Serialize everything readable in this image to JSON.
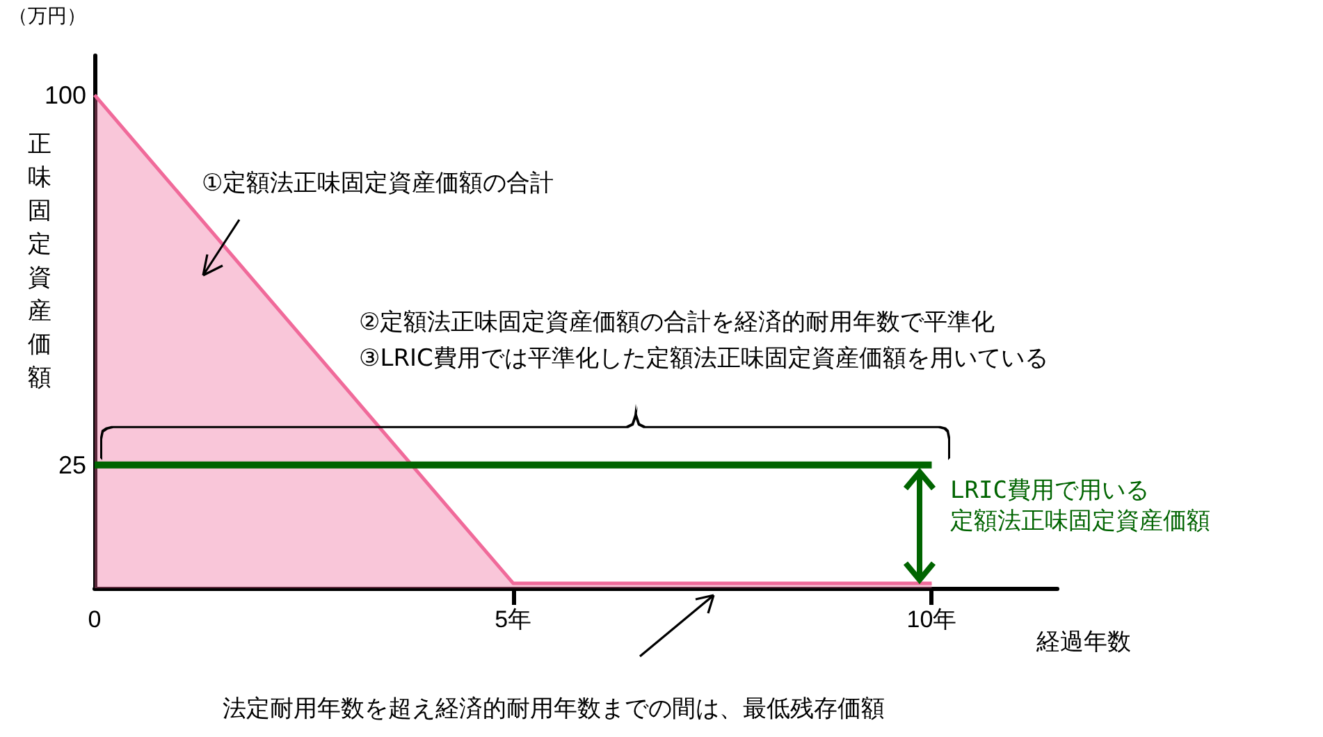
{
  "chart_data": {
    "type": "area",
    "ylabel": "正味固定資産価額",
    "xlabel": "経過年数",
    "xlim": [
      0,
      11.5
    ],
    "xticks": [
      0,
      {
        "value": 5,
        "label": "5年"
      },
      {
        "value": 10,
        "label": "10年"
      }
    ],
    "ylim": [
      0,
      108
    ],
    "yticks": [
      25,
      100
    ],
    "series": [
      {
        "color": "#f06a9a",
        "x": [
          0,
          5,
          10
        ],
        "values": [
          100,
          1,
          1
        ]
      },
      {
        "type": "line",
        "color": "#006400",
        "x": [
          0,
          10
        ],
        "values": [
          25,
          25
        ]
      }
    ],
    "annotations": [
      "（万円）",
      "①定額法正味固定資産価額の合計",
      "②定額法正味固定資産価額の合計を経済的耐用年数で平準化",
      "③LRIC費用では平準化した定額法正味固定資産価額を用いている",
      "LRIC費用で用いる",
      "定額法正味固定資産価額",
      "法定耐用年数を超え経済的耐用年数までの間は、最低残存価額"
    ],
    "grid": false,
    "marker": "none",
    "line_style": "solid"
  }
}
